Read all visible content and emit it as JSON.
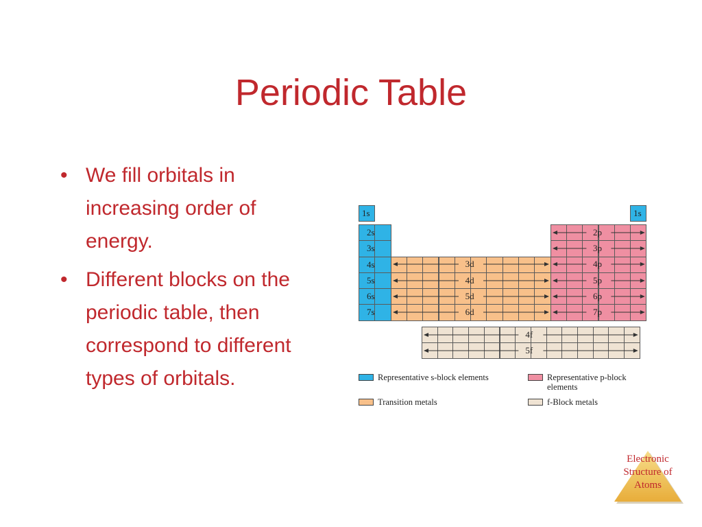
{
  "slide": {
    "title": "Periodic Table",
    "bullets": [
      "We fill orbitals in increasing order of energy.",
      "Different blocks on the periodic table, then correspond to different types of orbitals."
    ]
  },
  "table": {
    "s_labels": [
      "1s",
      "2s",
      "3s",
      "4s",
      "5s",
      "6s",
      "7s"
    ],
    "s_top_right": "1s",
    "p_labels": [
      "2p",
      "3p",
      "4p",
      "5p",
      "6p",
      "7p"
    ],
    "d_labels": [
      "3d",
      "4d",
      "5d",
      "6d"
    ],
    "f_labels": [
      "4f",
      "5f"
    ],
    "colors": {
      "s_block": "#2fb3e6",
      "p_block": "#ef8fa2",
      "d_block": "#f8c08a",
      "f_block": "#efe3d3"
    }
  },
  "legend": {
    "s_block": "Representative s-block elements",
    "p_block": "Representative p-block elements",
    "d_block": "Transition metals",
    "f_block": "f-Block metals"
  },
  "badge": {
    "text": "Electronic Structure of Atoms",
    "color": "#f2c14e"
  }
}
